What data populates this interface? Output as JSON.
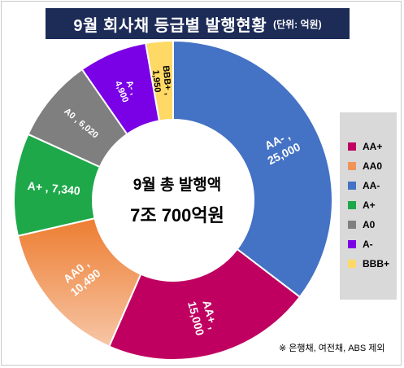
{
  "title": {
    "main": "9월 회사채 등급별 발행현황",
    "unit": "(단위: 억원)"
  },
  "center": {
    "line1": "9월 총 발행액",
    "line2": "7조 700억원"
  },
  "footnote": "※ 은행채, 여전채, ABS 제외",
  "chart_data": {
    "type": "pie",
    "title": "9월 회사채 등급별 발행현황",
    "unit": "억원",
    "legend_position": "right",
    "slices": [
      {
        "label": "AA-",
        "value": 25000,
        "value_label": "25,000",
        "color": "#4472c4"
      },
      {
        "label": "AA+",
        "value": 15000,
        "value_label": "15,000",
        "color": "#c00060"
      },
      {
        "label": "AA0",
        "value": 10490,
        "value_label": "10,490",
        "color": "#f0955a"
      },
      {
        "label": "A+",
        "value": 7340,
        "value_label": "7,340",
        "color": "#1ea84a"
      },
      {
        "label": "A0",
        "value": 6020,
        "value_label": "6,020",
        "color": "#7f7f7f"
      },
      {
        "label": "A-",
        "value": 4900,
        "value_label": "4,900",
        "color": "#7a00e6"
      },
      {
        "label": "BBB+",
        "value": 1950,
        "value_label": "1,950",
        "color": "#ffd966"
      }
    ],
    "legend": [
      "AA+",
      "AA0",
      "AA-",
      "A+",
      "A0",
      "A-",
      "BBB+"
    ]
  }
}
